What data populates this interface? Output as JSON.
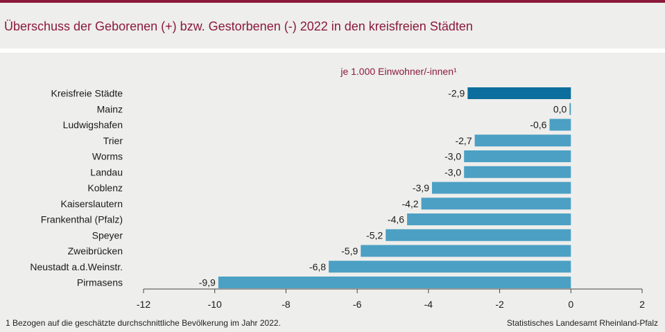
{
  "header": {
    "title": "Überschuss der Geborenen (+) bzw. Gestorbenen (-) 2022 in den kreisfreien Städten"
  },
  "colors": {
    "accent": "#8b1a3a",
    "bar_highlight": "#0c6e9c",
    "bar": "#4ba0c4"
  },
  "chart_data": {
    "type": "bar",
    "orientation": "horizontal",
    "subtitle": "je 1.000 Einwohner/-innen¹",
    "categories": [
      "Kreisfreie Städte",
      "Mainz",
      "Ludwigshafen",
      "Trier",
      "Worms",
      "Landau",
      "Koblenz",
      "Kaiserslautern",
      "Frankenthal (Pfalz)",
      "Speyer",
      "Zweibrücken",
      "Neustadt a.d.Weinstr.",
      "Pirmasens"
    ],
    "values": [
      -2.9,
      0.0,
      -0.6,
      -2.7,
      -3.0,
      -3.0,
      -3.9,
      -4.2,
      -4.6,
      -5.2,
      -5.9,
      -6.8,
      -9.9
    ],
    "value_labels": [
      "-2,9",
      "0,0",
      "-0,6",
      "-2,7",
      "-3,0",
      "-3,0",
      "-3,9",
      "-4,2",
      "-4,6",
      "-5,2",
      "-5,9",
      "-6,8",
      "-9,9"
    ],
    "highlight_index": 0,
    "xlim": [
      -12,
      2
    ],
    "xticks": [
      -12,
      -10,
      -8,
      -6,
      -4,
      -2,
      0,
      2
    ],
    "xtick_labels": [
      "-12",
      "-10",
      "-8",
      "-6",
      "-4",
      "-2",
      "0",
      "2"
    ],
    "grid": false
  },
  "footer": {
    "footnote": "1 Bezogen auf die geschätzte durchschnittliche Bevölkerung im Jahr 2022.",
    "source": "Statistisches Landesamt Rheinland-Pfalz"
  }
}
